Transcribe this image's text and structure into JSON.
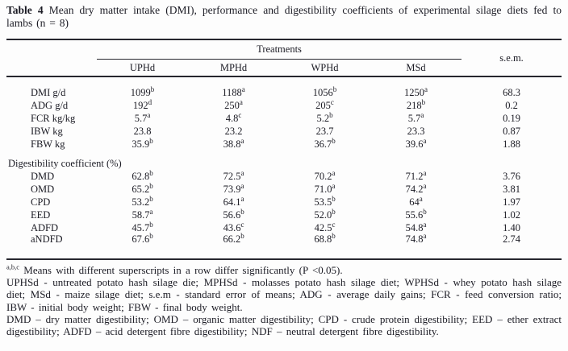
{
  "caption": {
    "label": "Table 4",
    "text": "Mean dry matter intake (DMI), performance and digestibility coefficients of experimental silage diets fed to lambs (n = 8)"
  },
  "table": {
    "treatments_label": "Treatments",
    "sem_label": "s.e.m.",
    "columns": [
      "UPHd",
      "MPHd",
      "WPHd",
      "MSd"
    ],
    "performance_rows": [
      {
        "label": "DMI g/d",
        "cells": [
          {
            "v": "1099",
            "sup": "b"
          },
          {
            "v": "1188",
            "sup": "a"
          },
          {
            "v": "1056",
            "sup": "b"
          },
          {
            "v": "1250",
            "sup": "a"
          }
        ],
        "sem": "68.3"
      },
      {
        "label": "ADG g/d",
        "cells": [
          {
            "v": "192",
            "sup": "d"
          },
          {
            "v": "250",
            "sup": "a"
          },
          {
            "v": "205",
            "sup": "c"
          },
          {
            "v": "218",
            "sup": "b"
          }
        ],
        "sem": "0.2"
      },
      {
        "label": "FCR kg/kg",
        "cells": [
          {
            "v": "5.7",
            "sup": "a"
          },
          {
            "v": "4.8",
            "sup": "c"
          },
          {
            "v": "5.2",
            "sup": "b"
          },
          {
            "v": "5.7",
            "sup": "a"
          }
        ],
        "sem": "0.19"
      },
      {
        "label": "IBW kg",
        "cells": [
          {
            "v": "23.8",
            "sup": ""
          },
          {
            "v": "23.2",
            "sup": ""
          },
          {
            "v": "23.7",
            "sup": ""
          },
          {
            "v": "23.3",
            "sup": ""
          }
        ],
        "sem": "0.87"
      },
      {
        "label": "FBW kg",
        "cells": [
          {
            "v": "35.9",
            "sup": "b"
          },
          {
            "v": "38.8",
            "sup": "a"
          },
          {
            "v": "36.7",
            "sup": "b"
          },
          {
            "v": "39.6",
            "sup": "a"
          }
        ],
        "sem": "1.88"
      }
    ],
    "section_label": "Digestibility coefficient (%)",
    "digestibility_rows": [
      {
        "label": "DMD",
        "cells": [
          {
            "v": "62.8",
            "sup": "b"
          },
          {
            "v": "72.5",
            "sup": "a"
          },
          {
            "v": "70.2",
            "sup": "a"
          },
          {
            "v": "71.2",
            "sup": "a"
          }
        ],
        "sem": "3.76"
      },
      {
        "label": "OMD",
        "cells": [
          {
            "v": "65.2",
            "sup": "b"
          },
          {
            "v": "73.9",
            "sup": "a"
          },
          {
            "v": "71.0",
            "sup": "a"
          },
          {
            "v": "74.2",
            "sup": "a"
          }
        ],
        "sem": "3.81"
      },
      {
        "label": "CPD",
        "cells": [
          {
            "v": "53.2",
            "sup": "b"
          },
          {
            "v": "64.1",
            "sup": "a"
          },
          {
            "v": "53.5",
            "sup": "b"
          },
          {
            "v": "64",
            "sup": "a"
          }
        ],
        "sem": "1.97"
      },
      {
        "label": "EED",
        "cells": [
          {
            "v": "58.7",
            "sup": "a"
          },
          {
            "v": "56.6",
            "sup": "b"
          },
          {
            "v": "52.0",
            "sup": "b"
          },
          {
            "v": "55.6",
            "sup": "b"
          }
        ],
        "sem": "1.02"
      },
      {
        "label": "ADFD",
        "cells": [
          {
            "v": "45.7",
            "sup": "b"
          },
          {
            "v": "43.6",
            "sup": "c"
          },
          {
            "v": "42.5",
            "sup": "c"
          },
          {
            "v": "54.8",
            "sup": "a"
          }
        ],
        "sem": "1.40"
      },
      {
        "label": "aNDFD",
        "cells": [
          {
            "v": "67.6",
            "sup": "b"
          },
          {
            "v": "66.2",
            "sup": "b"
          },
          {
            "v": "68.8",
            "sup": "b"
          },
          {
            "v": "74.8",
            "sup": "a"
          }
        ],
        "sem": "2.74"
      }
    ]
  },
  "footnotes": {
    "significance_sup": "a,b,c",
    "significance_text": "Means with different superscripts in a row differ significantly (P <0.05).",
    "diet_abbreviations": "UPHSd - untreated potato hash silage die; MPHSd - molasses potato hash silage diet; WPHSd - whey potato hash silage diet; MSd - maize silage diet; s.e.m - standard error of means; ADG - average daily gains; FCR - feed conversion ratio; IBW - initial body weight; FBW - final body weight.",
    "digestibility_abbreviations": "DMD – dry matter digestibility; OMD – organic matter digestibility; CPD - crude protein digestibility; EED – ether extract digestibility; ADFD – acid detergent fibre digestibility; NDF – neutral detergent fibre digestibility."
  },
  "colors": {
    "text": "#1b1b24",
    "rule": "#26262e",
    "background": "#fdfdfd"
  }
}
